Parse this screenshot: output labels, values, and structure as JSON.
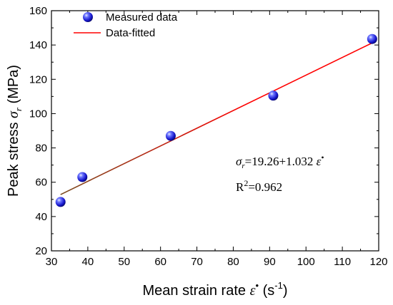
{
  "chart_data": {
    "type": "scatter",
    "xlabel": {
      "text": "Mean strain rate ",
      "symbol": "ε",
      "symbol_sup": "•",
      "unit_open": " (s",
      "unit_sup": "-1",
      "unit_close": ")"
    },
    "ylabel": {
      "text": "Peak stress  ",
      "symbol": "σ",
      "symbol_sub": "r",
      "unit": " (MPa)"
    },
    "xlim": [
      30,
      120
    ],
    "ylim": [
      20,
      160
    ],
    "x_ticks": [
      30,
      40,
      50,
      60,
      70,
      80,
      90,
      100,
      110,
      120
    ],
    "y_ticks": [
      20,
      40,
      60,
      80,
      100,
      120,
      140,
      160
    ],
    "grid": false,
    "legend_position": "top-left",
    "series": [
      {
        "name": "Measured data",
        "kind": "scatter",
        "color": "#1f1fd6",
        "points": [
          {
            "x": 32.5,
            "y": 48.5
          },
          {
            "x": 38.5,
            "y": 63.0
          },
          {
            "x": 62.8,
            "y": 87.0
          },
          {
            "x": 91.0,
            "y": 110.5
          },
          {
            "x": 118.2,
            "y": 143.5
          }
        ]
      },
      {
        "name": "Data-fitted",
        "kind": "line",
        "color": "#ff0000",
        "points": [
          {
            "x": 32.5,
            "y": 52.8
          },
          {
            "x": 118.2,
            "y": 141.2
          }
        ]
      }
    ],
    "annotations": {
      "equation": {
        "symbol": "σ",
        "symbol_sub": "r",
        "body": "=19.26+1.032 ",
        "rate_symbol": "ε",
        "rate_sup": "•"
      },
      "r_squared": {
        "label": "R",
        "sup": "2",
        "value": "=0.962"
      }
    }
  }
}
